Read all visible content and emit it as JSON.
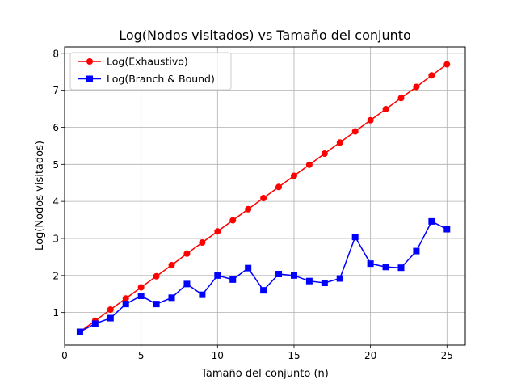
{
  "chart_data": {
    "type": "line",
    "title": "Log(Nodos visitados) vs Tamaño del conjunto",
    "xlabel": "Tamaño del conjunto (n)",
    "ylabel": "Log(Nodos visitados)",
    "xlim": [
      0,
      26.2
    ],
    "ylim": [
      0.12,
      8.17
    ],
    "xticks": [
      0,
      5,
      10,
      15,
      20,
      25
    ],
    "yticks": [
      1,
      2,
      3,
      4,
      5,
      6,
      7,
      8
    ],
    "grid": true,
    "legend_position": "top-left",
    "x": [
      1,
      2,
      3,
      4,
      5,
      6,
      7,
      8,
      9,
      10,
      11,
      12,
      13,
      14,
      15,
      16,
      17,
      18,
      19,
      20,
      21,
      22,
      23,
      24,
      25
    ],
    "series": [
      {
        "name": "Log(Exhaustivo)",
        "color": "#ff0000",
        "marker": "circle",
        "values": [
          0.48,
          0.78,
          1.08,
          1.38,
          1.68,
          1.98,
          2.28,
          2.59,
          2.89,
          3.19,
          3.49,
          3.79,
          4.09,
          4.39,
          4.69,
          4.99,
          5.29,
          5.59,
          5.89,
          6.19,
          6.49,
          6.79,
          7.09,
          7.4,
          7.7
        ]
      },
      {
        "name": "Log(Branch & Bound)",
        "color": "#0000ff",
        "marker": "square",
        "values": [
          0.48,
          0.7,
          0.85,
          1.23,
          1.45,
          1.23,
          1.4,
          1.77,
          1.48,
          2.0,
          1.89,
          2.2,
          1.6,
          2.04,
          2.0,
          1.85,
          1.8,
          1.92,
          3.04,
          2.32,
          2.23,
          2.21,
          2.66,
          3.46,
          3.25
        ]
      }
    ]
  }
}
